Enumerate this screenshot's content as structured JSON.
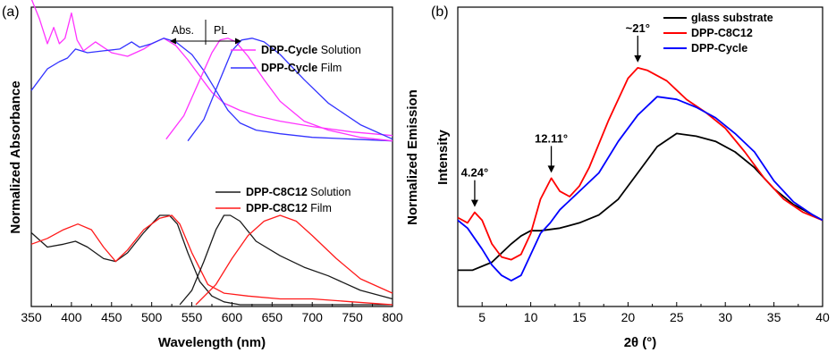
{
  "chart_data": [
    {
      "panel_label": "(a)",
      "type": "line",
      "xlabel": "Wavelength (nm)",
      "ylabel_left": "Normalized Absorbance",
      "ylabel_right": "Normalized Emission",
      "xlim": [
        350,
        800
      ],
      "xticks": [
        350,
        400,
        450,
        500,
        550,
        600,
        650,
        700,
        750,
        800
      ],
      "arrow_labels": {
        "left": "Abs.",
        "right": "PL"
      },
      "series": [
        {
          "name": "DPP-Cycle Solution",
          "name_bold": "DPP-Cycle",
          "name_rest": " Solution",
          "color": "#ff33ff",
          "group": "top",
          "x": [
            350,
            360,
            370,
            378,
            385,
            392,
            400,
            407,
            415,
            430,
            450,
            470,
            490,
            500,
            515,
            530,
            545,
            560,
            575,
            590,
            610,
            630,
            660,
            700,
            750,
            800
          ],
          "y": [
            0.95,
            0.84,
            0.7,
            0.79,
            0.7,
            0.73,
            0.87,
            0.72,
            0.66,
            0.71,
            0.65,
            0.63,
            0.67,
            0.7,
            0.73,
            0.69,
            0.61,
            0.52,
            0.43,
            0.37,
            0.33,
            0.3,
            0.27,
            0.24,
            0.21,
            0.19
          ]
        },
        {
          "name": "DPP-Cycle Film",
          "name_bold": "DPP-Cycle",
          "name_rest": " Film",
          "color": "#3333ff",
          "group": "top",
          "x": [
            350,
            370,
            385,
            395,
            405,
            420,
            440,
            460,
            475,
            485,
            500,
            515,
            530,
            550,
            565,
            580,
            595,
            610,
            630,
            660,
            700,
            750,
            800
          ],
          "y": [
            0.44,
            0.56,
            0.6,
            0.62,
            0.67,
            0.65,
            0.66,
            0.67,
            0.71,
            0.68,
            0.7,
            0.73,
            0.71,
            0.64,
            0.55,
            0.44,
            0.33,
            0.26,
            0.22,
            0.2,
            0.18,
            0.17,
            0.16
          ]
        },
        {
          "name": "DPP-Cycle Solution PL",
          "color": "#ff33ff",
          "group": "top",
          "x": [
            518,
            540,
            560,
            575,
            585,
            595,
            605,
            620,
            640,
            660,
            690,
            720,
            760,
            800
          ],
          "y": [
            0.17,
            0.3,
            0.5,
            0.65,
            0.72,
            0.73,
            0.71,
            0.63,
            0.5,
            0.38,
            0.27,
            0.22,
            0.18,
            0.16
          ]
        },
        {
          "name": "DPP-Cycle Film PL",
          "color": "#3333ff",
          "group": "top",
          "x": [
            545,
            565,
            585,
            600,
            612,
            625,
            640,
            660,
            690,
            720,
            760,
            800
          ],
          "y": [
            0.16,
            0.28,
            0.5,
            0.66,
            0.72,
            0.73,
            0.71,
            0.64,
            0.5,
            0.37,
            0.25,
            0.17
          ]
        },
        {
          "name": "DPP-C8C12 Solution",
          "name_bold": "DPP-C8C12",
          "name_rest": " Solution",
          "color": "#1a1a1a",
          "group": "bottom",
          "x": [
            350,
            370,
            390,
            405,
            420,
            440,
            455,
            470,
            490,
            510,
            522,
            532,
            545,
            560,
            575,
            590,
            610,
            650,
            700,
            750,
            800
          ],
          "y": [
            0.25,
            0.2,
            0.21,
            0.22,
            0.2,
            0.16,
            0.15,
            0.18,
            0.25,
            0.31,
            0.31,
            0.28,
            0.18,
            0.08,
            0.03,
            0.01,
            0.0,
            0.0,
            0.0,
            0.0,
            0.0
          ]
        },
        {
          "name": "DPP-C8C12 Film",
          "name_bold": "DPP-C8C12",
          "name_rest": " Film",
          "color": "#ff1a1a",
          "group": "bottom",
          "x": [
            350,
            370,
            390,
            408,
            425,
            440,
            455,
            470,
            490,
            510,
            525,
            535,
            550,
            570,
            590,
            620,
            660,
            700,
            750,
            800
          ],
          "y": [
            0.21,
            0.23,
            0.26,
            0.28,
            0.26,
            0.2,
            0.15,
            0.19,
            0.26,
            0.3,
            0.31,
            0.28,
            0.18,
            0.07,
            0.04,
            0.03,
            0.02,
            0.02,
            0.01,
            0.0
          ]
        },
        {
          "name": "DPP-C8C12 Solution PL",
          "color": "#1a1a1a",
          "group": "bottom",
          "x": [
            535,
            550,
            565,
            580,
            590,
            598,
            610,
            630,
            660,
            690,
            720,
            760,
            800
          ],
          "y": [
            0.0,
            0.05,
            0.15,
            0.26,
            0.31,
            0.31,
            0.29,
            0.22,
            0.17,
            0.13,
            0.1,
            0.05,
            0.02
          ]
        },
        {
          "name": "DPP-C8C12 Film PL",
          "color": "#ff1a1a",
          "group": "bottom",
          "x": [
            555,
            580,
            600,
            620,
            640,
            660,
            680,
            700,
            730,
            760,
            800
          ],
          "y": [
            0.0,
            0.07,
            0.16,
            0.24,
            0.29,
            0.31,
            0.29,
            0.24,
            0.16,
            0.09,
            0.04
          ]
        }
      ]
    },
    {
      "panel_label": "(b)",
      "type": "line",
      "xlabel": "2θ (°)",
      "ylabel": "Intensity",
      "xlim": [
        2.5,
        40
      ],
      "xticks": [
        5,
        10,
        15,
        20,
        25,
        30,
        35,
        40
      ],
      "annotations": [
        {
          "text": "4.24°",
          "x": 4.24
        },
        {
          "text": "12.11°",
          "x": 12.11
        },
        {
          "text": "~21°",
          "x": 21
        }
      ],
      "series": [
        {
          "name": "glass substrate",
          "color": "#000000",
          "x": [
            2.5,
            4,
            6,
            8,
            9,
            10,
            11,
            13,
            15,
            17,
            19,
            21,
            23,
            25,
            27,
            29,
            31,
            33,
            35,
            37,
            39,
            40
          ],
          "y": [
            0.06,
            0.06,
            0.09,
            0.16,
            0.19,
            0.21,
            0.21,
            0.22,
            0.24,
            0.27,
            0.33,
            0.43,
            0.53,
            0.58,
            0.57,
            0.55,
            0.51,
            0.45,
            0.37,
            0.31,
            0.27,
            0.25
          ]
        },
        {
          "name": "DPP-C8C12",
          "color": "#ff0000",
          "x": [
            2.5,
            3.5,
            4.24,
            5,
            6,
            7,
            8,
            9,
            10,
            11,
            12.11,
            13,
            14,
            15,
            16,
            18,
            20,
            21,
            22,
            24,
            26,
            28,
            30,
            32,
            34,
            36,
            38,
            40
          ],
          "y": [
            0.26,
            0.24,
            0.28,
            0.25,
            0.16,
            0.11,
            0.1,
            0.12,
            0.2,
            0.33,
            0.41,
            0.36,
            0.34,
            0.38,
            0.45,
            0.63,
            0.79,
            0.83,
            0.82,
            0.78,
            0.71,
            0.66,
            0.6,
            0.51,
            0.41,
            0.33,
            0.28,
            0.25
          ]
        },
        {
          "name": "DPP-Cycle",
          "color": "#0000ff",
          "x": [
            2.5,
            3.5,
            5,
            6,
            7,
            8,
            9,
            10,
            11,
            12,
            13,
            15,
            17,
            19,
            21,
            23,
            25,
            27,
            29,
            31,
            33,
            35,
            37,
            39,
            40
          ],
          "y": [
            0.25,
            0.22,
            0.14,
            0.08,
            0.04,
            0.02,
            0.04,
            0.12,
            0.2,
            0.24,
            0.29,
            0.36,
            0.43,
            0.55,
            0.65,
            0.72,
            0.71,
            0.68,
            0.64,
            0.58,
            0.51,
            0.4,
            0.32,
            0.27,
            0.25
          ]
        }
      ]
    }
  ]
}
